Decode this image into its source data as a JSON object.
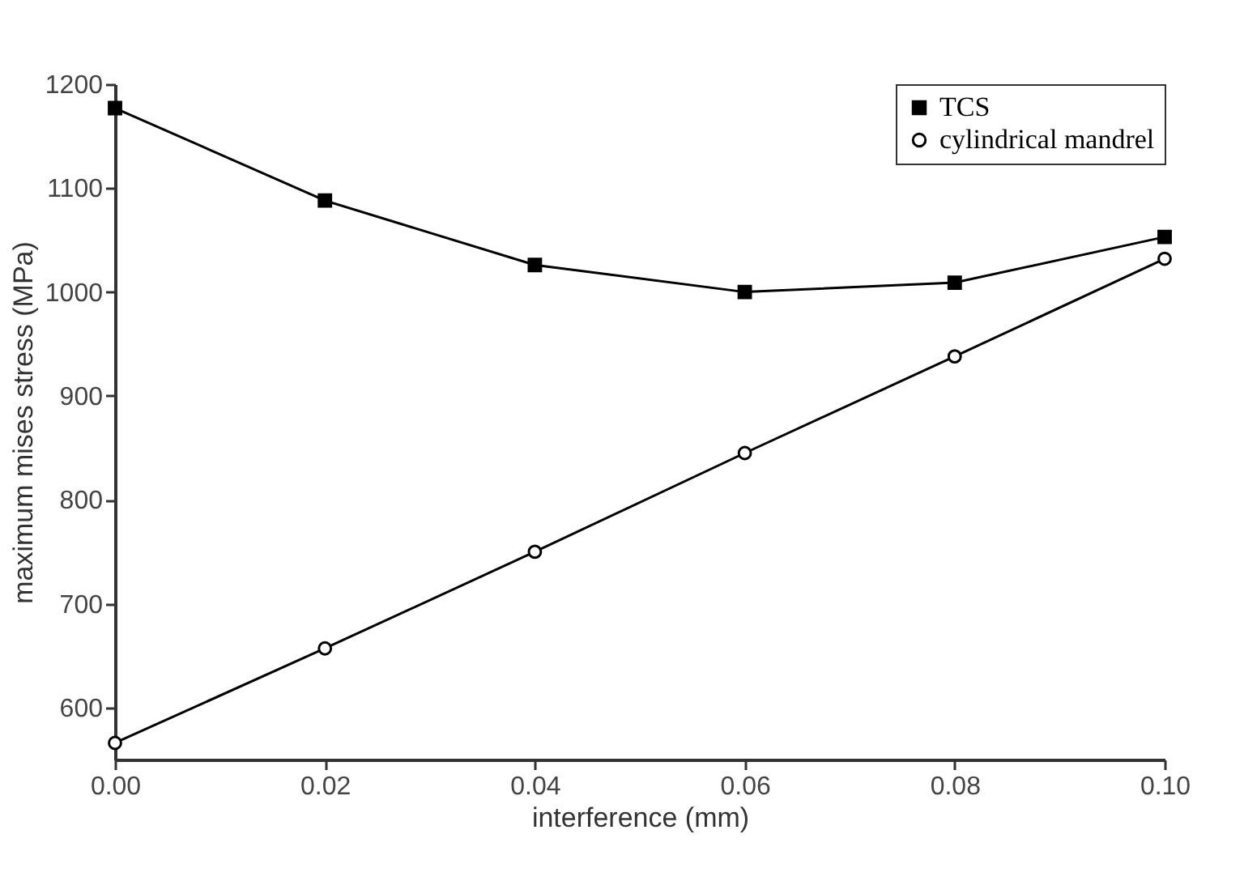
{
  "chart_data": {
    "type": "line",
    "xlabel": "interference (mm)",
    "ylabel": "maximum mises stress (MPa)",
    "x": [
      0,
      0.02,
      0.04,
      0.06,
      0.08,
      0.1
    ],
    "series": [
      {
        "name": "TCS",
        "color": "#000000",
        "marker": "square",
        "values": [
          1177,
          1088,
          1026,
          1000,
          1009,
          1053
        ]
      },
      {
        "name": "cylindrical mandrel",
        "color": "#000000",
        "marker": "circle",
        "values": [
          566,
          657,
          750,
          845,
          938,
          1032
        ]
      }
    ],
    "xlim": [
      0,
      0.1
    ],
    "ylim": [
      550,
      1200
    ],
    "xticks": [
      {
        "value": 0,
        "label": "0.00"
      },
      {
        "value": 0.02,
        "label": "0.02"
      },
      {
        "value": 0.04,
        "label": "0.04"
      },
      {
        "value": 0.06,
        "label": "0.06"
      },
      {
        "value": 0.08,
        "label": "0.08"
      },
      {
        "value": 0.1,
        "label": "0.10"
      }
    ],
    "yticks": [
      600,
      700,
      800,
      900,
      1000,
      1100,
      1200
    ],
    "legend": "top right",
    "grid": false
  }
}
